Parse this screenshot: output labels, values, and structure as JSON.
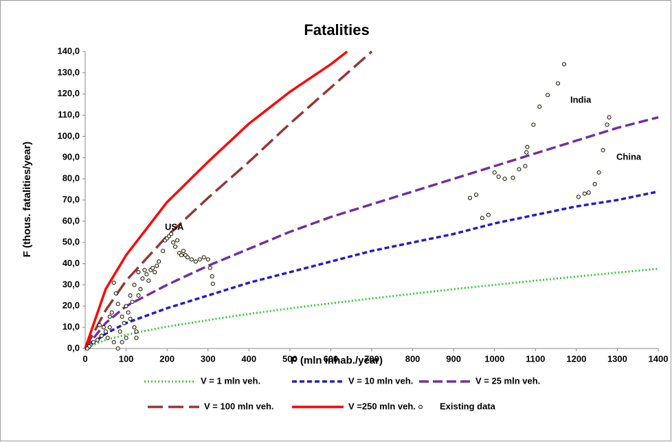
{
  "chart_data": {
    "type": "line",
    "title": "Fatalities",
    "x_label": "P (mln inhab./year)",
    "y_label": "F (thous. fatalities/year)",
    "xlim": [
      0,
      1400
    ],
    "ylim": [
      0,
      140
    ],
    "xticks": [
      0,
      100,
      200,
      300,
      400,
      500,
      600,
      700,
      800,
      900,
      1000,
      1100,
      1200,
      1300,
      1400
    ],
    "yticks": [
      {
        "value": 0,
        "label": "0,0"
      },
      {
        "value": 10,
        "label": "10,0"
      },
      {
        "value": 20,
        "label": "20,0"
      },
      {
        "value": 30,
        "label": "30,0"
      },
      {
        "value": 40,
        "label": "40,0"
      },
      {
        "value": 50,
        "label": "50,0"
      },
      {
        "value": 60,
        "label": "60,0"
      },
      {
        "value": 70,
        "label": "70,0"
      },
      {
        "value": 80,
        "label": "80,0"
      },
      {
        "value": 90,
        "label": "90,0"
      },
      {
        "value": 100,
        "label": "100,0"
      },
      {
        "value": 110,
        "label": "110,0"
      },
      {
        "value": 120,
        "label": "120,0"
      },
      {
        "value": 130,
        "label": "130,0"
      },
      {
        "value": 140,
        "label": "140,0"
      }
    ],
    "grid": false,
    "annotations": [
      "USA",
      "India",
      "China"
    ],
    "series": [
      {
        "name": "V = 1 mln veh.",
        "type": "line",
        "dash": "dotted",
        "color": "#33cc33",
        "x": [
          0,
          50,
          100,
          200,
          300,
          400,
          500,
          600,
          700,
          800,
          900,
          1000,
          1100,
          1200,
          1300,
          1400
        ],
        "values": [
          0,
          4.1,
          6.5,
          10.3,
          13.4,
          16.3,
          18.9,
          21.3,
          23.6,
          25.8,
          28,
          30,
          32,
          33.9,
          35.8,
          37.6
        ]
      },
      {
        "name": "V = 10 mln veh.",
        "type": "line",
        "dash": "short",
        "color": "#1f1fcc",
        "x": [
          0,
          50,
          100,
          200,
          300,
          400,
          500,
          600,
          700,
          800,
          900,
          1000,
          1100,
          1200,
          1300,
          1400
        ],
        "values": [
          0,
          7,
          12,
          19,
          25,
          31,
          36,
          41,
          46,
          50,
          54,
          59,
          63,
          67,
          70,
          74
        ]
      },
      {
        "name": "V = 25 mln veh.",
        "type": "line",
        "dash": "medium",
        "color": "#7030a0",
        "x": [
          0,
          50,
          100,
          200,
          300,
          400,
          500,
          600,
          700,
          800,
          900,
          1000,
          1100,
          1200,
          1300,
          1400
        ],
        "values": [
          0,
          12,
          20,
          30,
          39,
          47,
          55,
          62,
          68,
          74,
          80,
          86,
          92,
          98,
          104,
          109
        ]
      },
      {
        "name": "V = 100 mln veh.",
        "type": "line",
        "dash": "long",
        "color": "#953735",
        "x": [
          0,
          50,
          100,
          200,
          300,
          400,
          500,
          600,
          700
        ],
        "values": [
          0,
          18,
          32,
          53,
          71,
          88,
          106,
          123,
          140
        ]
      },
      {
        "name": "V =250 mln veh.",
        "type": "line",
        "dash": "solid",
        "color": "#ff0000",
        "x": [
          0,
          50,
          100,
          200,
          300,
          400,
          500,
          600,
          640
        ],
        "values": [
          0,
          28,
          44,
          69,
          88,
          106,
          121,
          134,
          140
        ]
      },
      {
        "name": "Existing data",
        "type": "scatter",
        "color": "#f5efd6",
        "x": [
          940,
          955,
          970,
          985,
          1000,
          1010,
          1025,
          1045,
          1060,
          1075,
          1078,
          1080,
          1095,
          1110,
          1130,
          1155,
          1170,
          1205,
          1220,
          1230,
          1245,
          1255,
          1265,
          1275,
          1280,
          180,
          190,
          195,
          200,
          205,
          210,
          215,
          220,
          225,
          230,
          235,
          240,
          245,
          250,
          260,
          270,
          280,
          290,
          300,
          305,
          310,
          312,
          70,
          75,
          80,
          90,
          100,
          110,
          120,
          130,
          140,
          150,
          160,
          170,
          130,
          120,
          125,
          80,
          90,
          100,
          60,
          50,
          40,
          30,
          20,
          10,
          5,
          60,
          55,
          45,
          35,
          65,
          85,
          95,
          105,
          115,
          125,
          135,
          145,
          155,
          165,
          175,
          70,
          110
        ],
        "values": [
          71,
          72.5,
          61.5,
          63,
          83,
          81,
          80,
          80.5,
          84.5,
          86,
          92.5,
          95,
          105.5,
          114,
          119.5,
          125,
          134,
          71.5,
          73,
          73.5,
          77.5,
          83,
          93.5,
          105.5,
          109,
          41,
          46,
          51,
          52,
          53,
          54,
          50,
          48,
          51,
          45,
          44,
          46,
          44,
          43,
          42,
          41,
          42,
          43,
          42,
          38,
          34,
          30.5,
          31,
          26,
          21,
          15,
          20,
          25,
          30,
          36,
          33,
          35,
          37,
          36,
          25,
          10,
          5,
          0,
          3,
          5,
          10,
          8,
          6,
          4,
          3,
          1,
          0,
          15,
          5,
          10,
          11,
          17,
          8,
          12,
          17,
          22,
          8,
          28,
          37,
          32,
          38,
          39,
          3,
          14
        ]
      }
    ]
  }
}
